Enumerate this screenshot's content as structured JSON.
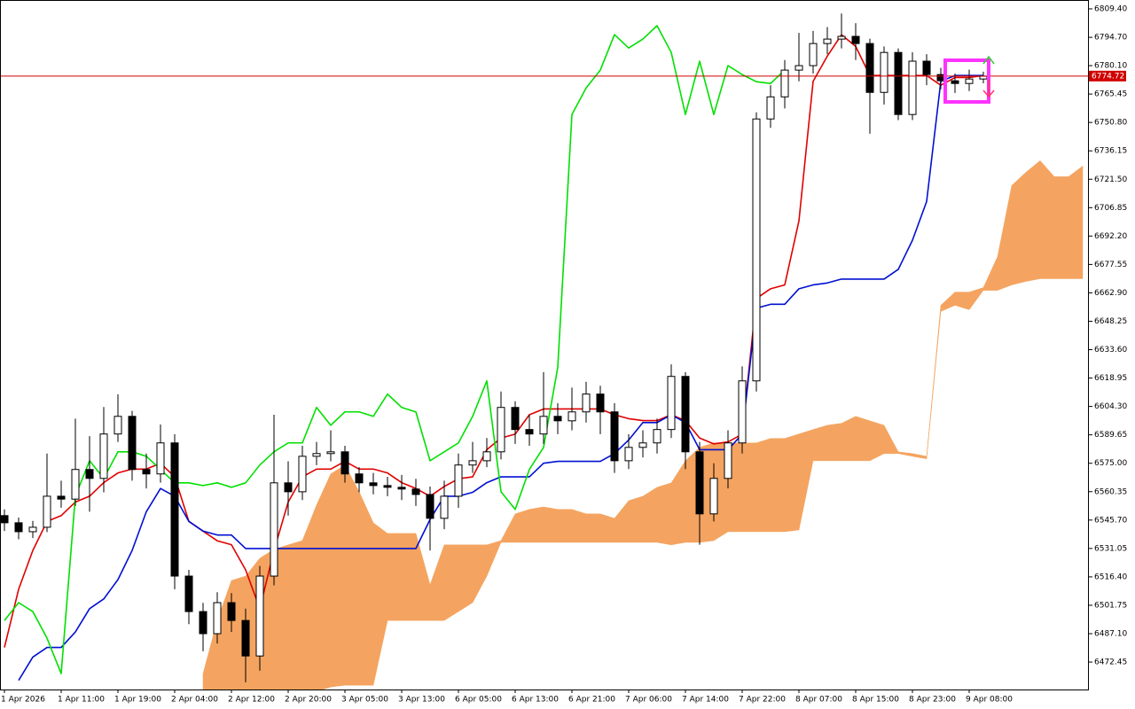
{
  "chart_data": {
    "type": "candlestick",
    "categories": [
      "1 Apr 2026",
      null,
      null,
      null,
      "1 Apr 11:00",
      null,
      null,
      null,
      "1 Apr 19:00",
      null,
      null,
      null,
      "2 Apr 04:00",
      null,
      null,
      null,
      "2 Apr 12:00",
      null,
      null,
      null,
      "2 Apr 20:00",
      null,
      null,
      null,
      "3 Apr 05:00",
      null,
      null,
      null,
      "3 Apr 13:00",
      null,
      null,
      null,
      "6 Apr 05:00",
      null,
      null,
      null,
      "6 Apr 13:00",
      null,
      null,
      null,
      "6 Apr 21:00",
      null,
      null,
      null,
      "7 Apr 06:00",
      null,
      null,
      null,
      "7 Apr 14:00",
      null,
      null,
      null,
      "7 Apr 22:00",
      null,
      null,
      null,
      "8 Apr 07:00",
      null,
      null,
      null,
      "8 Apr 15:00",
      null,
      null,
      null,
      "8 Apr 23:00",
      null,
      null,
      null,
      "9 Apr 08:00",
      null,
      null,
      null,
      null,
      null,
      null,
      null,
      null
    ],
    "open": [
      6548.0,
      6544.3,
      6539.7,
      6542.0,
      6558.0,
      6556.5,
      6571.8,
      6567.2,
      6590.1,
      6599.2,
      6571.8,
      6569.5,
      6585.5,
      6516.8,
      6498.5,
      6487.1,
      6503.1,
      6493.9,
      6475.6,
      6516.8,
      6564.9,
      6560.3,
      6578.6,
      6580.0,
      6580.9,
      6569.5,
      6564.9,
      6563.5,
      6562.6,
      6561.7,
      6558.9,
      6546.6,
      6558.0,
      6574.1,
      6576.3,
      6580.9,
      6603.8,
      6592.4,
      6590.1,
      6599.2,
      6596.9,
      6601.5,
      6610.7,
      6601.5,
      6576.3,
      6583.2,
      6585.5,
      6592.4,
      6619.8,
      6580.9,
      6548.9,
      6567.2,
      6585.5,
      6617.5,
      6752.6,
      6764.0,
      6777.8,
      6780.1,
      6791.5,
      6793.8,
      6795.2,
      6791.5,
      6766.3,
      6786.9,
      6754.9,
      6782.4,
      6775.5,
      6772.3,
      6770.9,
      6773.2,
      null,
      null,
      null,
      null,
      null,
      null,
      null
    ],
    "high": [
      6551.2,
      6547.0,
      6545.3,
      6580.0,
      6566.0,
      6598.0,
      6589.0,
      6604.0,
      6610.6,
      6602.0,
      6580.0,
      6595.0,
      6590.0,
      6520.0,
      6503.0,
      6508.5,
      6508.0,
      6500.0,
      6522.0,
      6600.0,
      6576.0,
      6584.0,
      6586.0,
      6592.0,
      6584.0,
      6573.0,
      6570.0,
      6568.0,
      6569.0,
      6567.0,
      6563.0,
      6566.0,
      6580.0,
      6586.0,
      6588.0,
      6612.0,
      6607.0,
      6600.0,
      6622.0,
      6606.0,
      6614.0,
      6617.0,
      6615.0,
      6606.0,
      6590.0,
      6592.0,
      6598.0,
      6626.0,
      6622.0,
      6586.0,
      6575.0,
      6592.0,
      6625.0,
      6756.0,
      6770.0,
      6783.0,
      6797.0,
      6798.0,
      6800.0,
      6807.0,
      6802.0,
      6794.0,
      6790.0,
      6789.0,
      6787.0,
      6786.0,
      6779.0,
      6776.0,
      6778.0,
      6777.0,
      null,
      null,
      null,
      null,
      null,
      null,
      null
    ],
    "low": [
      6540.1,
      6535.8,
      6536.4,
      6539.5,
      6552.1,
      6553.0,
      6550.0,
      6560.0,
      6586.0,
      6566.0,
      6562.0,
      6565.0,
      6510.0,
      6492.0,
      6478.0,
      6482.0,
      6488.0,
      6462.0,
      6468.0,
      6512.0,
      6548.0,
      6556.0,
      6574.0,
      6576.0,
      6565.0,
      6560.0,
      6559.0,
      6558.0,
      6556.0,
      6553.0,
      6530.0,
      6541.0,
      6552.0,
      6570.0,
      6573.0,
      6577.0,
      6585.0,
      6584.0,
      6585.0,
      6590.0,
      6592.0,
      6596.0,
      6590.0,
      6570.0,
      6572.0,
      6578.0,
      6580.0,
      6588.0,
      6572.0,
      6533.0,
      6545.0,
      6562.0,
      6580.0,
      6612.0,
      6748.0,
      6758.0,
      6772.0,
      6776.0,
      6786.0,
      6789.0,
      6783.0,
      6745.0,
      6760.0,
      6752.0,
      6752.0,
      6770.0,
      6768.0,
      6766.0,
      6767.0,
      6771.0,
      null,
      null,
      null,
      null,
      null,
      null,
      null
    ],
    "close": [
      6544.3,
      6539.7,
      6542.0,
      6558.0,
      6556.5,
      6571.8,
      6567.2,
      6590.1,
      6599.2,
      6571.8,
      6569.5,
      6585.5,
      6516.8,
      6498.5,
      6487.1,
      6503.1,
      6493.9,
      6475.6,
      6516.8,
      6564.9,
      6560.3,
      6578.6,
      6580.0,
      6580.9,
      6569.5,
      6564.9,
      6563.5,
      6562.6,
      6561.7,
      6558.9,
      6546.6,
      6558.0,
      6574.1,
      6576.3,
      6580.9,
      6603.8,
      6592.4,
      6590.1,
      6599.2,
      6596.9,
      6601.5,
      6610.7,
      6601.5,
      6576.3,
      6583.2,
      6585.5,
      6592.4,
      6619.8,
      6580.9,
      6548.9,
      6567.2,
      6585.5,
      6617.5,
      6752.6,
      6764.0,
      6777.8,
      6780.1,
      6791.5,
      6793.8,
      6795.2,
      6791.5,
      6766.3,
      6786.9,
      6754.9,
      6782.4,
      6775.5,
      6772.3,
      6770.9,
      6773.2,
      6774.7,
      null,
      null,
      null,
      null,
      null,
      null,
      null
    ],
    "up_color": "#ffffff",
    "down_color": "#000000",
    "candle_edge": "#000000",
    "series": [
      {
        "color": "#e00000",
        "values": [
          6480,
          6510,
          6530,
          6545,
          6548,
          6555,
          6558,
          6565,
          6570,
          6572,
          6572,
          6575,
          6568,
          6545,
          6540,
          6535,
          6533,
          6520,
          6500,
          6530,
          6555,
          6568,
          6572,
          6572,
          6576,
          6572,
          6572,
          6570,
          6565,
          6562,
          6558,
          6563,
          6567,
          6568,
          6582,
          6588,
          6590,
          6600,
          6603,
          6603,
          6603,
          6603,
          6603,
          6600,
          6598,
          6597,
          6597,
          6600,
          6597,
          6588,
          6585,
          6586,
          6590,
          6660,
          6665,
          6667,
          6700,
          6772,
          6785,
          6796,
          6790,
          6775,
          6775,
          6775,
          6775,
          6775,
          6770,
          6774,
          6774,
          6775,
          null,
          null,
          null,
          null,
          null,
          null,
          null
        ]
      },
      {
        "color": "#0010d0",
        "values": [
          null,
          6463,
          6475,
          6480,
          6480,
          6488,
          6500,
          6505,
          6515,
          6530,
          6550,
          6562,
          6558,
          6545,
          6540,
          6538,
          6538,
          6531,
          6531,
          6531,
          6531,
          6531,
          6531,
          6531,
          6531,
          6531,
          6531,
          6531,
          6531,
          6531,
          6546,
          6558,
          6558,
          6560,
          6565,
          6568,
          6568,
          6568,
          6575,
          6576,
          6576,
          6576,
          6576,
          6580,
          6587,
          6596,
          6596,
          6600,
          6596,
          6582,
          6582,
          6582,
          6590,
          6655,
          6657,
          6657,
          6665,
          6667,
          6668,
          6670,
          6670,
          6670,
          6670,
          6675,
          6690,
          6710,
          6772,
          6775,
          6775,
          6775,
          null,
          null,
          null,
          null,
          null,
          null,
          null
        ]
      },
      {
        "color": "#00e000",
        "values": [
          6493.9,
          6503.1,
          6498.5,
          6484.8,
          6466.5,
          6558.0,
          6576.3,
          6567.2,
          6580.9,
          6580.9,
          6578.6,
          6571.8,
          6564.9,
          6564.9,
          6563.5,
          6564.9,
          6562.6,
          6564.9,
          6574.1,
          6580.9,
          6585.5,
          6585.5,
          6603.8,
          6594.6,
          6601.5,
          6601.5,
          6599.2,
          6610.7,
          6603.8,
          6601.5,
          6576.3,
          6580.9,
          6585.5,
          6599.2,
          6617.5,
          6560.3,
          6551.2,
          6571.8,
          6583.2,
          6624.4,
          6754.9,
          6768.6,
          6777.8,
          6796.1,
          6789.2,
          6793.8,
          6800.7,
          6786.9,
          6754.9,
          6782.4,
          6754.9,
          6780.1,
          6775.5,
          6771.8,
          6770.9,
          6777.8,
          null,
          null,
          null,
          null,
          null,
          null,
          null,
          null,
          null,
          null,
          null,
          null,
          null,
          null,
          null,
          null,
          null,
          null,
          null,
          null,
          null
        ]
      }
    ],
    "cloud": {
      "color": "#f4a460",
      "span_a": [
        null,
        null,
        null,
        null,
        null,
        null,
        null,
        null,
        null,
        null,
        null,
        null,
        null,
        null,
        6466.5,
        6493.9,
        6514.5,
        6516.8,
        6526.0,
        6530.6,
        6532.9,
        6535.1,
        6553.5,
        6569.5,
        6574.1,
        6560.3,
        6544.3,
        6538.8,
        6538.8,
        6538.8,
        6512.3,
        6532.9,
        6532.9,
        6532.9,
        6532.9,
        6535.1,
        6548.9,
        6551.2,
        6552.5,
        6551.2,
        6551.2,
        6548.9,
        6548.9,
        6546.6,
        6555.7,
        6558.0,
        6562.6,
        6564.9,
        6576.3,
        6583.2,
        6585.5,
        6585.5,
        6585.5,
        6585.5,
        6587.8,
        6587.8,
        6590.1,
        6592.4,
        6594.6,
        6595.6,
        6599.2,
        6596.9,
        6594.6,
        6580.9,
        6580.0,
        6578.6,
        6656.5,
        6663.3,
        6663.3,
        6665.6,
        6681.6,
        6718.3,
        6725.1,
        6731.1,
        6722.8,
        6722.8,
        6728.3
      ],
      "span_b": [
        null,
        null,
        null,
        null,
        null,
        null,
        null,
        null,
        null,
        null,
        null,
        null,
        null,
        null,
        6458.2,
        6452.7,
        6452.7,
        6452.7,
        6452.7,
        6452.7,
        6452.7,
        6455.0,
        6457.3,
        6459.6,
        6460.5,
        6460.5,
        6460.5,
        6493.9,
        6493.9,
        6493.9,
        6493.9,
        6493.9,
        6498.5,
        6503.1,
        6516.8,
        6534.2,
        6534.2,
        6534.2,
        6534.2,
        6534.2,
        6534.2,
        6534.2,
        6534.2,
        6534.2,
        6534.2,
        6534.2,
        6534.2,
        6532.9,
        6534.2,
        6534.2,
        6535.1,
        6539.7,
        6539.7,
        6539.7,
        6539.7,
        6539.7,
        6540.6,
        6576.3,
        6576.3,
        6576.3,
        6576.3,
        6576.3,
        6580.0,
        6580.0,
        6578.6,
        6577.3,
        6653.3,
        6656.5,
        6654.2,
        6664.2,
        6664.2,
        6667.0,
        6668.8,
        6670.2,
        6670.2,
        6670.2,
        6670.2
      ]
    },
    "price_line": {
      "value": 6774.72,
      "color": "#d00000"
    },
    "ylim": [
      6458.3,
      6813.5
    ],
    "yticks": [
      {
        "value": 6809.4,
        "label": "6809.40"
      },
      {
        "value": 6794.7,
        "label": "6794.70"
      },
      {
        "value": 6780.1,
        "label": "6780.10"
      },
      6765.45,
      {
        "value": 6750.8,
        "label": "6750.80"
      },
      6736.15,
      {
        "value": 6721.5,
        "label": "6721.50"
      },
      6706.85,
      {
        "value": 6692.2,
        "label": "6692.20"
      },
      6677.55,
      {
        "value": 6662.9,
        "label": "6662.90"
      },
      6648.25,
      {
        "value": 6633.6,
        "label": "6633.60"
      },
      6618.95,
      {
        "value": 6604.3,
        "label": "6604.30"
      },
      6589.65,
      {
        "value": 6575,
        "label": "6575.00"
      },
      6560.35,
      {
        "value": 6545.7,
        "label": "6545.70"
      },
      6531.05,
      {
        "value": 6516.4,
        "label": "6516.40"
      },
      6501.75,
      {
        "value": 6487.1,
        "label": "6487.10"
      },
      6472.45
    ],
    "grid": false
  }
}
